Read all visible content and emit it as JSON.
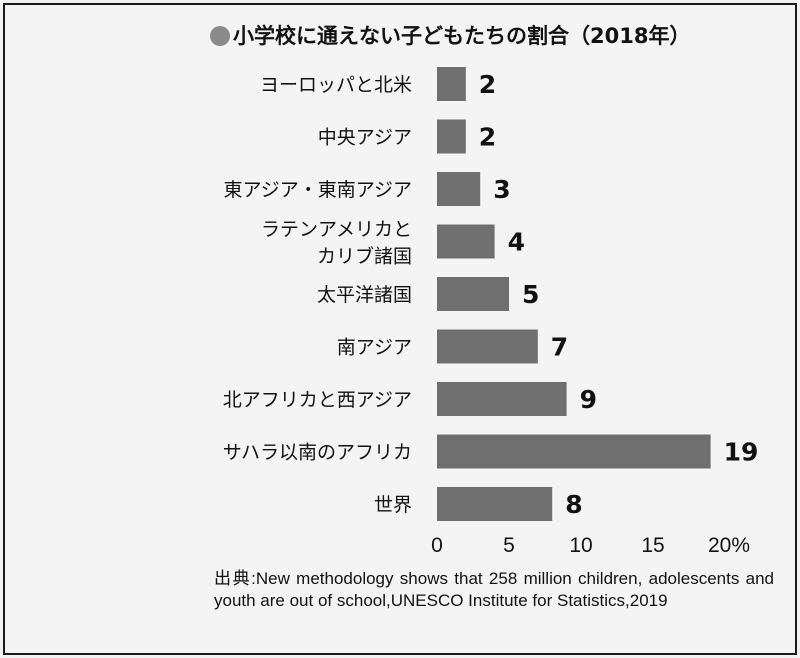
{
  "title": "小学校に通えない子どもたちの割合（2018年）",
  "source": "出典:New methodology shows that 258 million children, adolescents and youth are out of school,UNESCO Institute for Statistics,2019",
  "colors": {
    "bar": "#6f6f6f",
    "text": "#111111",
    "dot": "#8a8a8a"
  },
  "chart_data": {
    "type": "bar",
    "orientation": "horizontal",
    "categories": [
      [
        "ヨーロッパと北米"
      ],
      [
        "中央アジア"
      ],
      [
        "東アジア・東南アジア"
      ],
      [
        "ラテンアメリカと",
        "カリブ諸国"
      ],
      [
        "太平洋諸国"
      ],
      [
        "南アジア"
      ],
      [
        "北アフリカと西アジア"
      ],
      [
        "サハラ以南のアフリカ"
      ],
      [
        "世界"
      ]
    ],
    "values": [
      2,
      2,
      3,
      4,
      5,
      7,
      9,
      19,
      8
    ],
    "ticks": [
      "0",
      "5",
      "10",
      "15",
      "20%"
    ],
    "tick_values": [
      0,
      5,
      10,
      15,
      20
    ],
    "xlim": [
      0,
      20
    ],
    "grid": false,
    "legend": "none"
  }
}
